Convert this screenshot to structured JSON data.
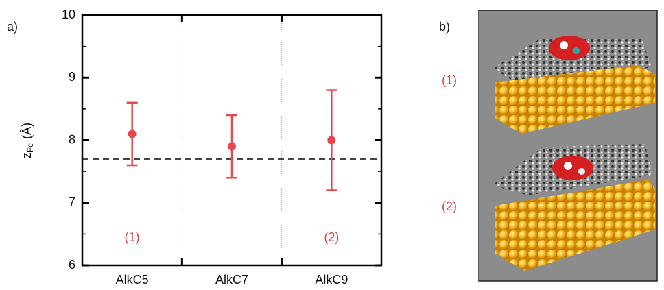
{
  "chart_data": {
    "type": "errorbar",
    "panel_label": "a)",
    "y_label": {
      "main": "z",
      "sub": "Fc",
      "unit": "(Å)"
    },
    "categories": [
      "AlkC5",
      "AlkC7",
      "AlkC9"
    ],
    "values": [
      8.1,
      7.9,
      8.0
    ],
    "errors": [
      0.5,
      0.5,
      0.8
    ],
    "color": "#e8474b",
    "reference_line": 7.7,
    "annotations": [
      "(1)",
      "(2)"
    ],
    "ylim": [
      6,
      10
    ],
    "yticks": [
      6,
      7,
      8,
      9,
      10
    ]
  },
  "panel_b": {
    "label": "b)",
    "image_labels": [
      "(1)",
      "(2)"
    ]
  }
}
